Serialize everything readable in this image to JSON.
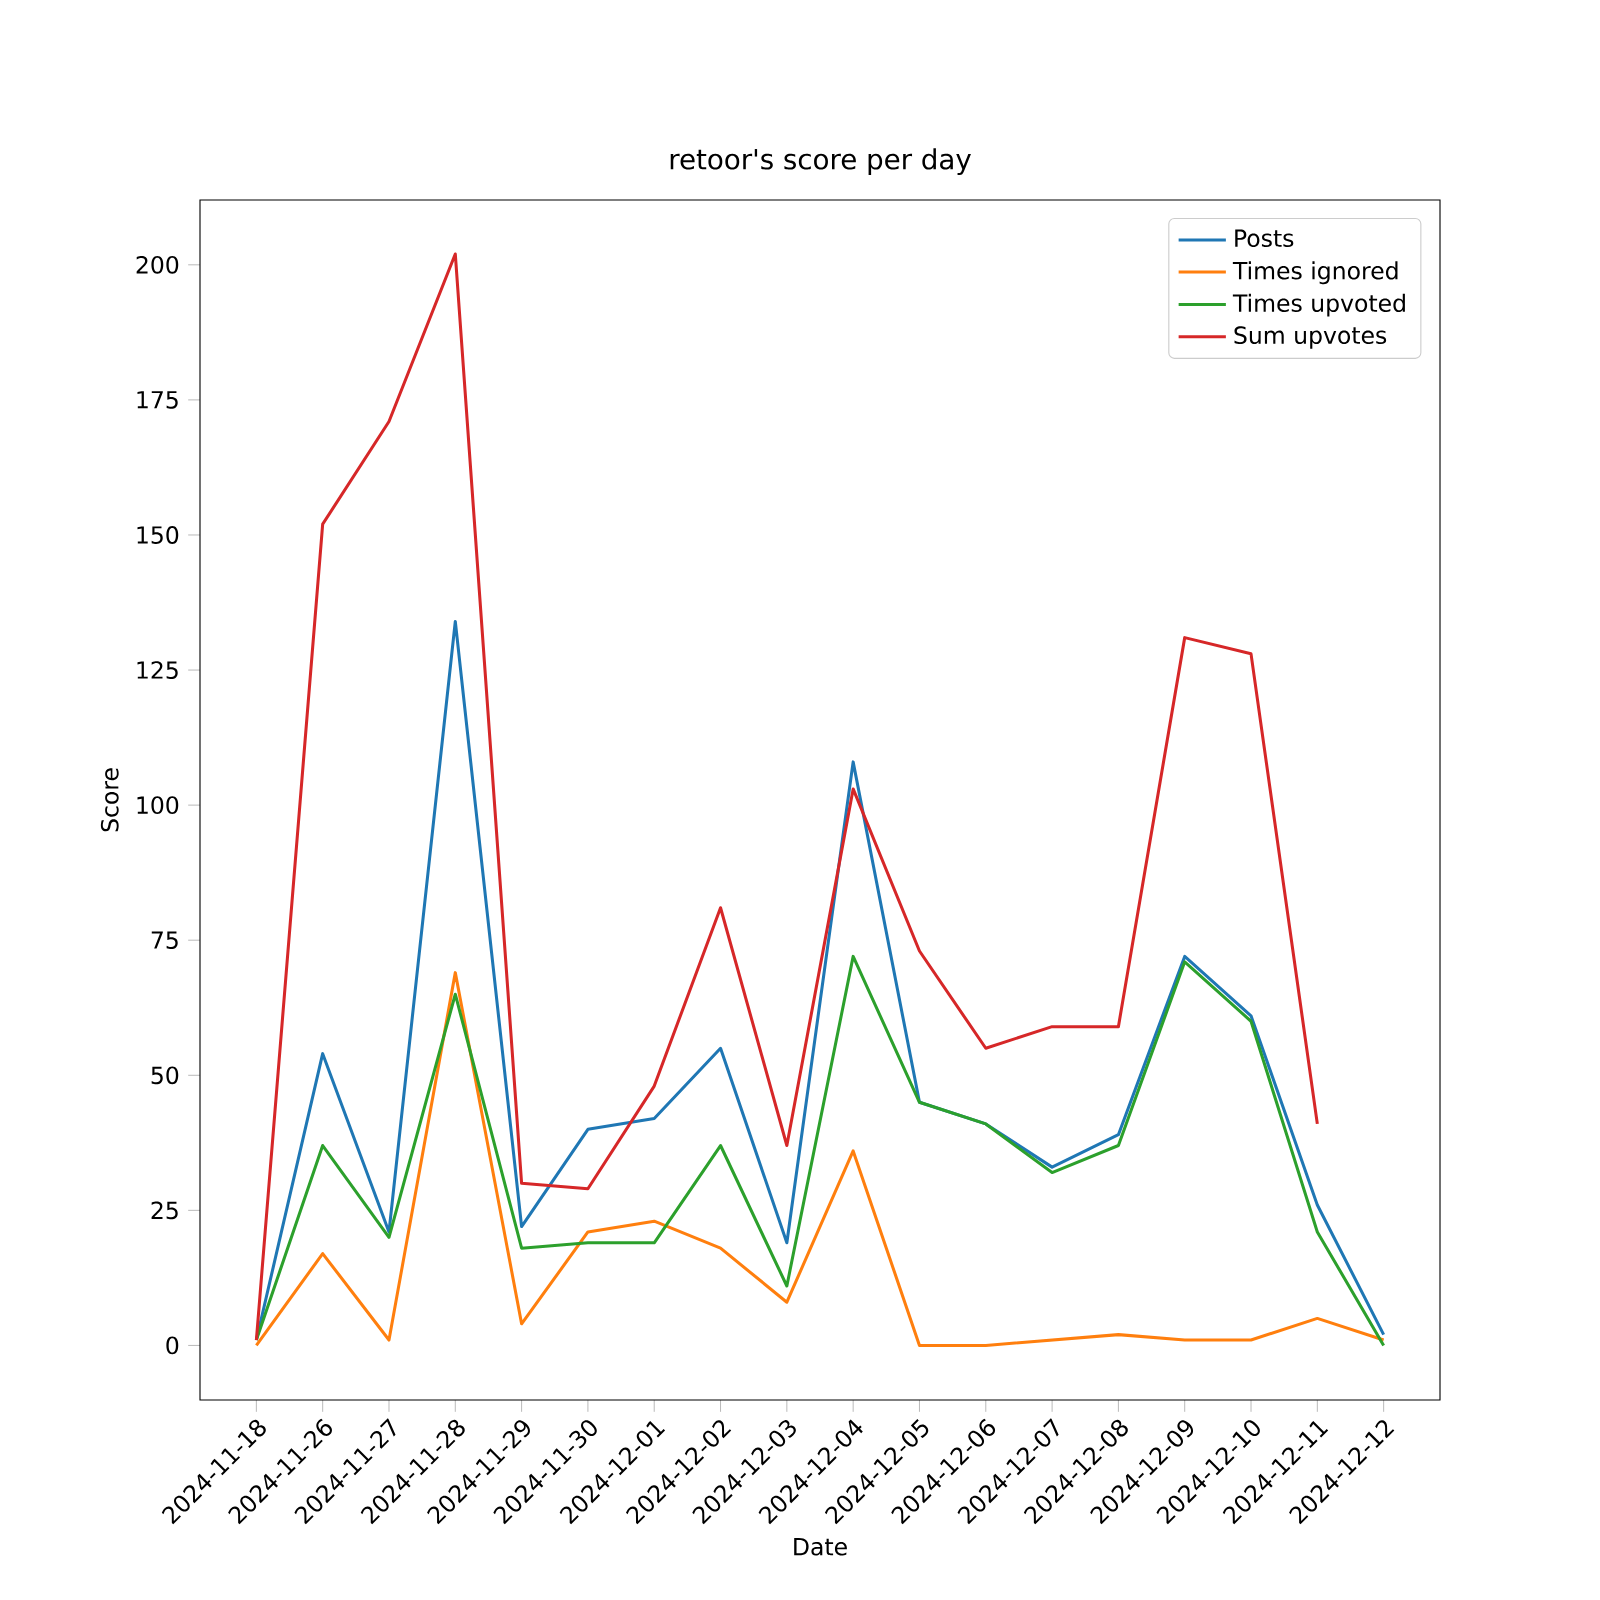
{
  "chart_data": {
    "type": "line",
    "title": "retoor's score per day",
    "xlabel": "Date",
    "ylabel": "Score",
    "categories": [
      "2024-11-18",
      "2024-11-26",
      "2024-11-27",
      "2024-11-28",
      "2024-11-29",
      "2024-11-30",
      "2024-12-01",
      "2024-12-02",
      "2024-12-03",
      "2024-12-04",
      "2024-12-05",
      "2024-12-06",
      "2024-12-07",
      "2024-12-08",
      "2024-12-09",
      "2024-12-10",
      "2024-12-11",
      "2024-12-12"
    ],
    "ylim": [
      -10.1,
      212
    ],
    "yticks": [
      0,
      25,
      50,
      75,
      100,
      125,
      150,
      175,
      200
    ],
    "legend": "top right",
    "series": [
      {
        "name": "Posts",
        "color": "#1f77b4",
        "values": [
          1,
          54,
          21,
          134,
          22,
          40,
          42,
          55,
          19,
          108,
          45,
          41,
          33,
          39,
          72,
          61,
          26,
          2
        ]
      },
      {
        "name": "Times ignored",
        "color": "#ff7f0e",
        "values": [
          0,
          17,
          1,
          69,
          4,
          21,
          23,
          18,
          8,
          36,
          0,
          0,
          1,
          2,
          1,
          1,
          5,
          1
        ]
      },
      {
        "name": "Times upvoted",
        "color": "#2ca02c",
        "values": [
          1,
          37,
          20,
          65,
          18,
          19,
          19,
          37,
          11,
          72,
          45,
          41,
          32,
          37,
          71,
          60,
          21,
          0
        ]
      },
      {
        "name": "Sum upvotes",
        "color": "#d62728",
        "values": [
          1,
          152,
          171,
          202,
          30,
          29,
          48,
          81,
          37,
          103,
          73,
          55,
          59,
          59,
          131,
          128,
          41,
          null
        ]
      }
    ]
  }
}
